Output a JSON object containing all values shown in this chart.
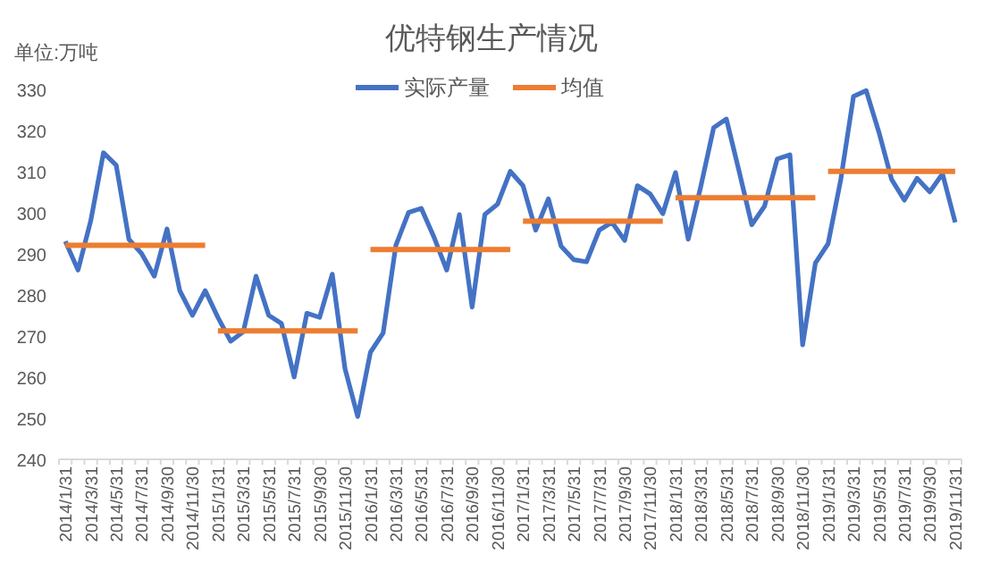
{
  "chart_data": {
    "type": "line",
    "title": "优特钢生产情况",
    "annotations": [
      "单位:万吨"
    ],
    "categories": [
      "2014/1/31",
      null,
      "2014/3/31",
      null,
      "2014/5/31",
      null,
      "2014/7/31",
      null,
      "2014/9/30",
      null,
      "2014/11/30",
      null,
      "2015/1/31",
      null,
      "2015/3/31",
      null,
      "2015/5/31",
      null,
      "2015/7/31",
      null,
      "2015/9/30",
      null,
      "2015/11/30",
      null,
      "2016/1/31",
      null,
      "2016/3/31",
      null,
      "2016/5/31",
      null,
      "2016/7/31",
      null,
      "2016/9/30",
      null,
      "2016/11/30",
      null,
      "2017/1/31",
      null,
      "2017/3/31",
      null,
      "2017/5/31",
      null,
      "2017/7/31",
      null,
      "2017/9/30",
      null,
      "2017/11/30",
      null,
      "2018/1/31",
      null,
      "2018/3/31",
      null,
      "2018/5/31",
      null,
      "2018/7/31",
      null,
      "2018/9/30",
      null,
      "2018/11/30",
      null,
      "2019/1/31",
      null,
      "2019/3/31",
      null,
      "2019/5/31",
      null,
      "2019/7/31",
      null,
      "2019/9/30",
      null,
      "2019/11/31"
    ],
    "ylim": [
      240,
      330
    ],
    "yticks": [
      240,
      250,
      260,
      270,
      280,
      290,
      300,
      310,
      320,
      330
    ],
    "grid": false,
    "legend": "top",
    "line_style": "solid",
    "marker": "none",
    "series": [
      {
        "name": "实际产量",
        "color": "#4472c4",
        "values": [
          293,
          286,
          298,
          314.5,
          311.5,
          293.5,
          290,
          284.5,
          296,
          281,
          275,
          281,
          274.5,
          268.7,
          271,
          284.5,
          275,
          273,
          260,
          275.5,
          274.5,
          285,
          262,
          250.4,
          266,
          270.7,
          292,
          300,
          301,
          294,
          286,
          299.5,
          277,
          299.5,
          302,
          310,
          306.5,
          295.7,
          303.3,
          291.8,
          288.5,
          288,
          295.7,
          297.6,
          293.2,
          306.5,
          304.5,
          299.7,
          309.7,
          293.5,
          306.5,
          320.6,
          322.7,
          310,
          297,
          301.5,
          313,
          314,
          267.8,
          287.7,
          292.4,
          308,
          328.2,
          329.6,
          319.5,
          308,
          303,
          308.3,
          305,
          309.4,
          297.6
        ]
      },
      {
        "name": "均值",
        "color": "#ed7d31",
        "values": [
          292,
          292,
          292,
          292,
          292,
          292,
          292,
          292,
          292,
          292,
          292,
          292,
          null,
          null,
          null,
          null,
          null,
          null,
          null,
          null,
          null,
          null,
          null,
          null,
          null,
          null,
          null,
          null,
          null,
          null,
          null,
          null,
          null,
          null,
          null,
          null,
          null,
          null,
          null,
          null,
          null,
          null,
          null,
          null,
          null,
          null,
          null,
          null,
          null,
          null,
          null,
          null,
          null,
          null,
          null,
          null,
          null,
          null,
          null,
          null,
          null,
          null,
          null,
          null,
          null,
          null,
          null,
          null,
          null,
          null,
          null
        ]
      },
      {
        "color": "#ed7d31",
        "values": [
          null,
          null,
          null,
          null,
          null,
          null,
          null,
          null,
          null,
          null,
          null,
          null,
          271.2,
          271.2,
          271.2,
          271.2,
          271.2,
          271.2,
          271.2,
          271.2,
          271.2,
          271.2,
          271.2,
          271.2,
          null,
          null,
          null,
          null,
          null,
          null,
          null,
          null,
          null,
          null,
          null,
          null,
          null,
          null,
          null,
          null,
          null,
          null,
          null,
          null,
          null,
          null,
          null,
          null,
          null,
          null,
          null,
          null,
          null,
          null,
          null,
          null,
          null,
          null,
          null,
          null,
          null,
          null,
          null,
          null,
          null,
          null,
          null,
          null,
          null,
          null,
          null
        ]
      },
      {
        "color": "#ed7d31",
        "values": [
          null,
          null,
          null,
          null,
          null,
          null,
          null,
          null,
          null,
          null,
          null,
          null,
          null,
          null,
          null,
          null,
          null,
          null,
          null,
          null,
          null,
          null,
          null,
          null,
          291,
          291,
          291,
          291,
          291,
          291,
          291,
          291,
          291,
          291,
          291,
          291,
          null,
          null,
          null,
          null,
          null,
          null,
          null,
          null,
          null,
          null,
          null,
          null,
          null,
          null,
          null,
          null,
          null,
          null,
          null,
          null,
          null,
          null,
          null,
          null,
          null,
          null,
          null,
          null,
          null,
          null,
          null,
          null,
          null,
          null,
          null
        ]
      },
      {
        "color": "#ed7d31",
        "values": [
          null,
          null,
          null,
          null,
          null,
          null,
          null,
          null,
          null,
          null,
          null,
          null,
          null,
          null,
          null,
          null,
          null,
          null,
          null,
          null,
          null,
          null,
          null,
          null,
          null,
          null,
          null,
          null,
          null,
          null,
          null,
          null,
          null,
          null,
          null,
          null,
          297.9,
          297.9,
          297.9,
          297.9,
          297.9,
          297.9,
          297.9,
          297.9,
          297.9,
          297.9,
          297.9,
          297.9,
          null,
          null,
          null,
          null,
          null,
          null,
          null,
          null,
          null,
          null,
          null,
          null,
          null,
          null,
          null,
          null,
          null,
          null,
          null,
          null,
          null,
          null,
          null
        ]
      },
      {
        "color": "#ed7d31",
        "values": [
          null,
          null,
          null,
          null,
          null,
          null,
          null,
          null,
          null,
          null,
          null,
          null,
          null,
          null,
          null,
          null,
          null,
          null,
          null,
          null,
          null,
          null,
          null,
          null,
          null,
          null,
          null,
          null,
          null,
          null,
          null,
          null,
          null,
          null,
          null,
          null,
          null,
          null,
          null,
          null,
          null,
          null,
          null,
          null,
          null,
          null,
          null,
          null,
          303.6,
          303.6,
          303.6,
          303.6,
          303.6,
          303.6,
          303.6,
          303.6,
          303.6,
          303.6,
          303.6,
          303.6,
          null,
          null,
          null,
          null,
          null,
          null,
          null,
          null,
          null,
          null,
          null
        ]
      },
      {
        "color": "#ed7d31",
        "values": [
          null,
          null,
          null,
          null,
          null,
          null,
          null,
          null,
          null,
          null,
          null,
          null,
          null,
          null,
          null,
          null,
          null,
          null,
          null,
          null,
          null,
          null,
          null,
          null,
          null,
          null,
          null,
          null,
          null,
          null,
          null,
          null,
          null,
          null,
          null,
          null,
          null,
          null,
          null,
          null,
          null,
          null,
          null,
          null,
          null,
          null,
          null,
          null,
          null,
          null,
          null,
          null,
          null,
          null,
          null,
          null,
          null,
          null,
          null,
          null,
          310,
          310,
          310,
          310,
          310,
          310,
          310,
          310,
          310,
          310,
          310
        ]
      }
    ]
  }
}
